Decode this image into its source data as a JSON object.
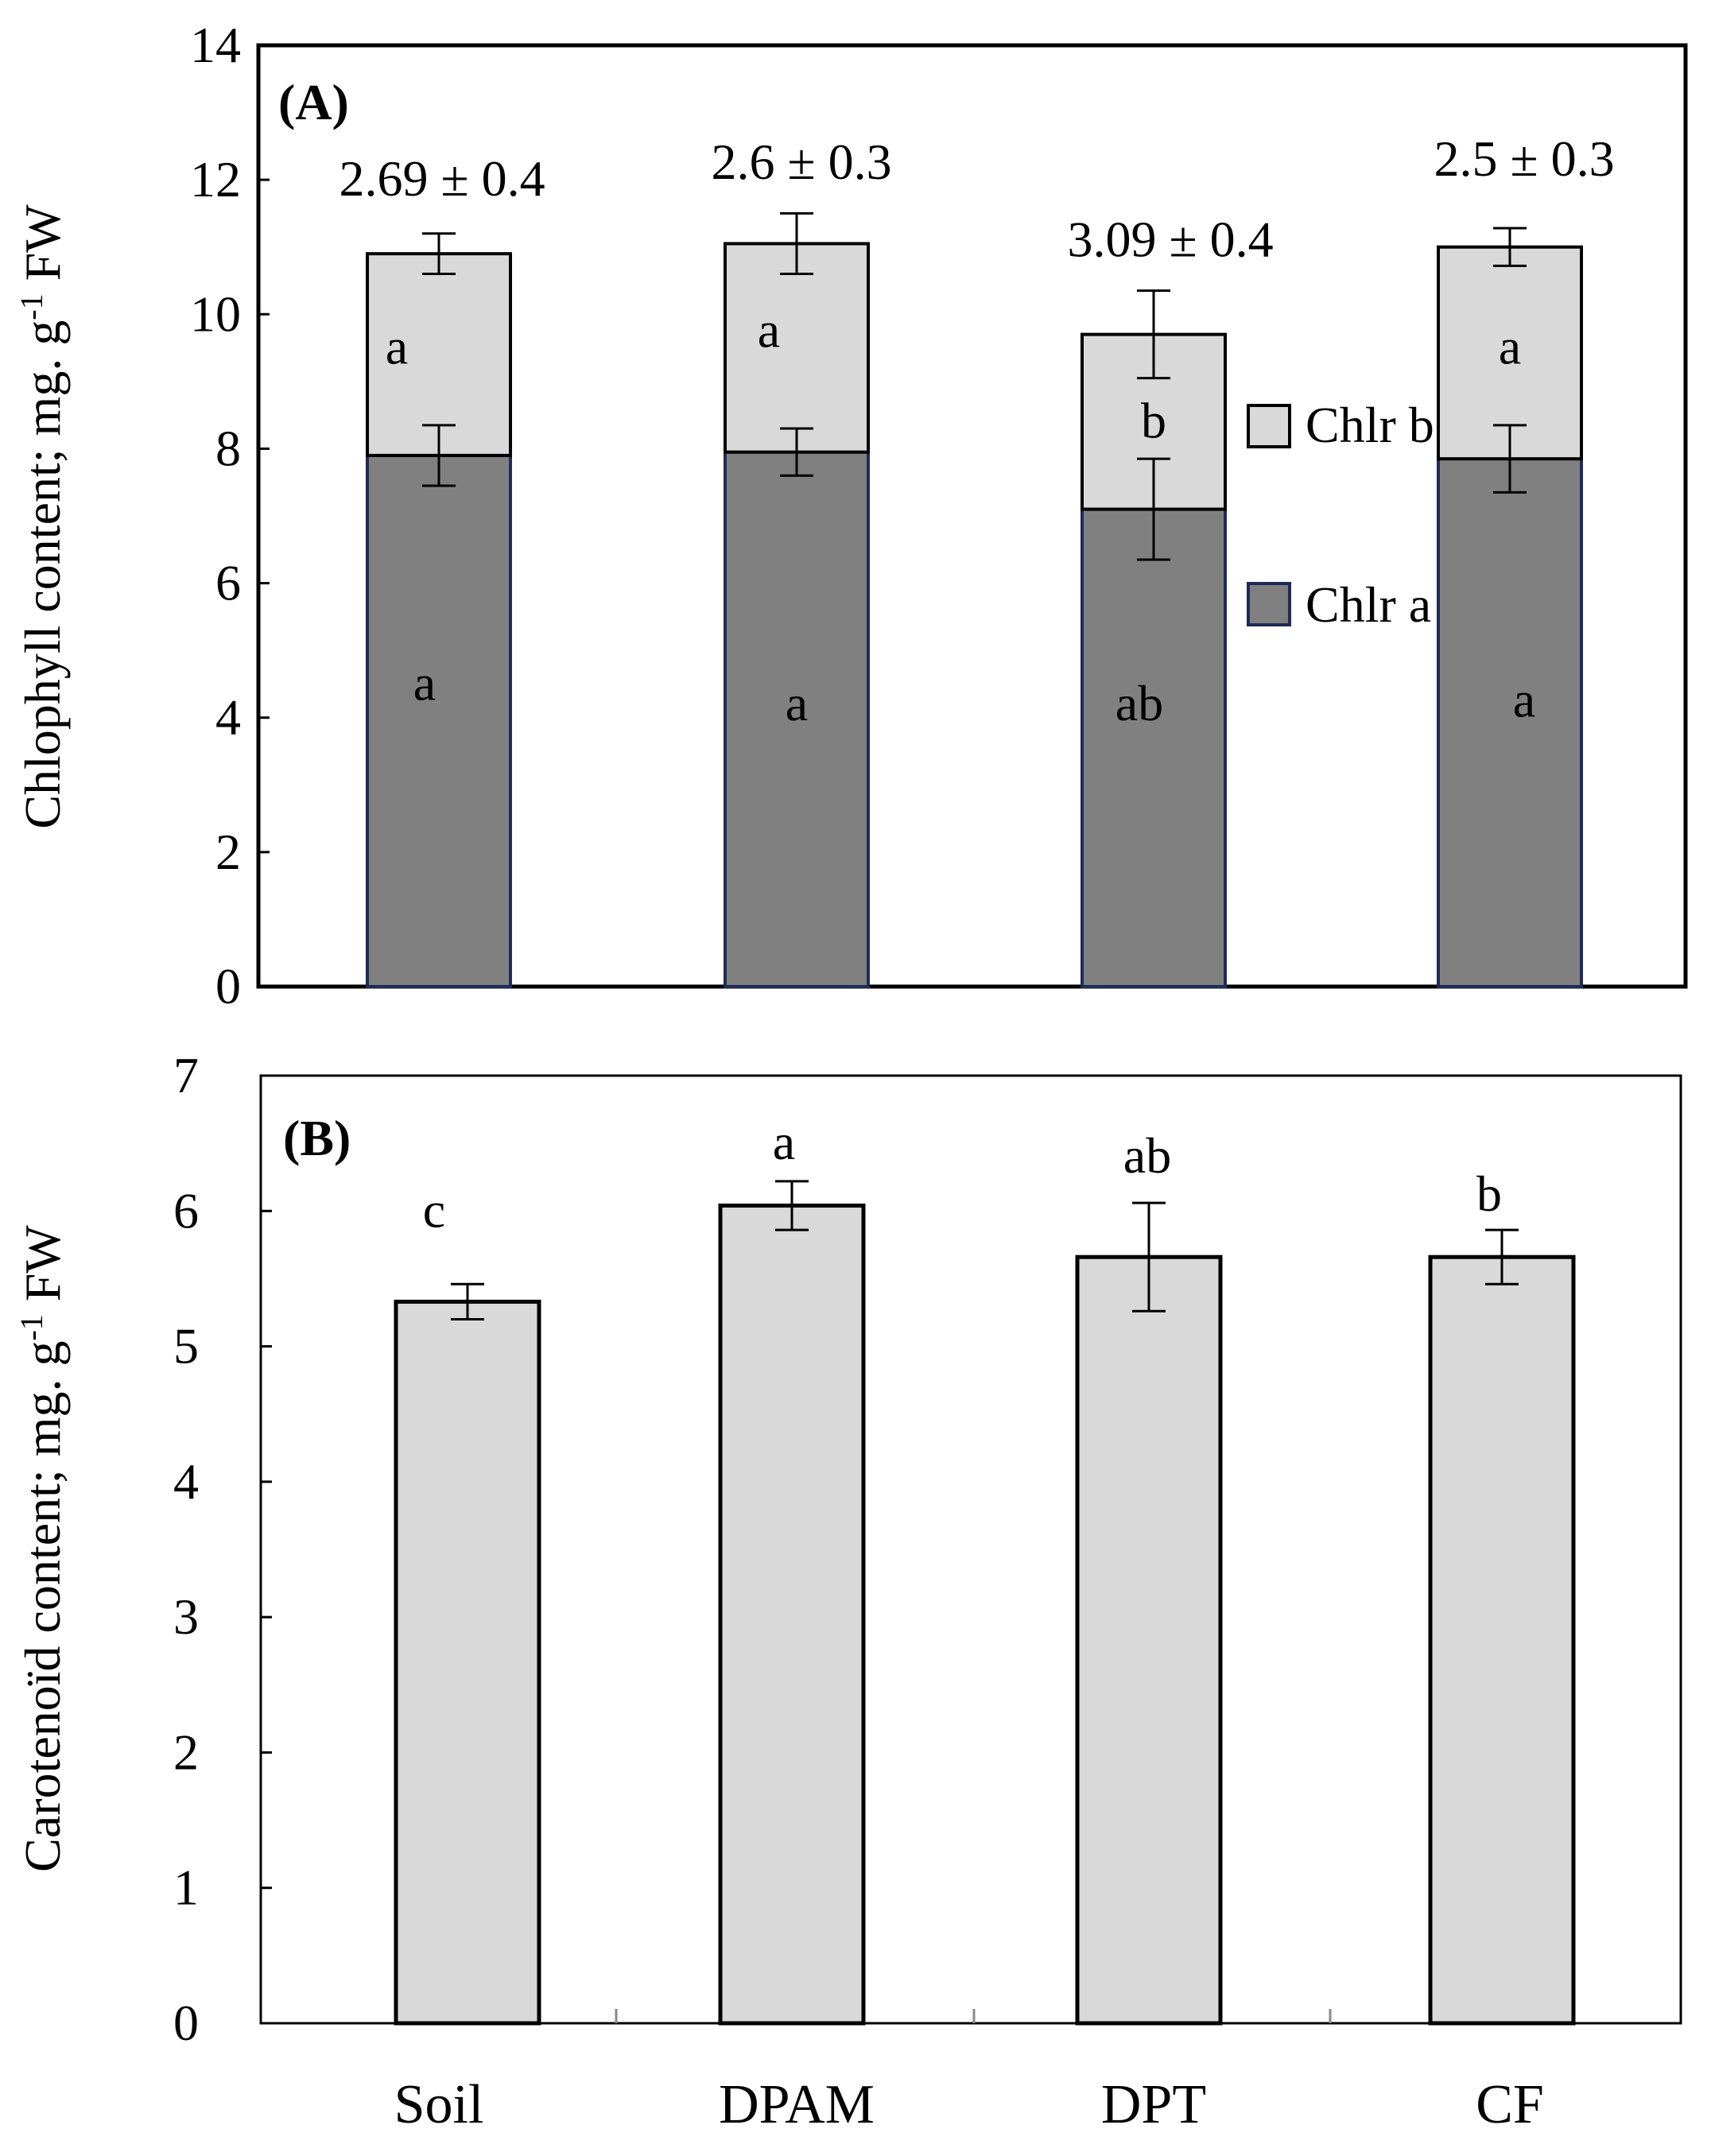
{
  "chart_data": [
    {
      "type": "bar",
      "stacked": true,
      "panel_label": "(A)",
      "ylabel": "Chlophyll content; mg. g",
      "ylabel_sup": "-1",
      "ylabel_suffix": " FW",
      "ylim": [
        0,
        14
      ],
      "yticks": [
        "0",
        "2",
        "4",
        "6",
        "8",
        "10",
        "12",
        "14"
      ],
      "categories": [
        "Soil",
        "DPAM",
        "DPT",
        "CF"
      ],
      "series": [
        {
          "name": "Chlr a",
          "values": [
            7.9,
            7.95,
            7.1,
            7.85
          ],
          "errors": [
            0.45,
            0.35,
            0.75,
            0.5
          ],
          "letters": [
            "a",
            "a",
            "ab",
            "a"
          ],
          "color": "#808080",
          "edge": "#1f2a56"
        },
        {
          "name": "Chlr b",
          "values": [
            3.0,
            3.1,
            2.6,
            3.15
          ],
          "errors": [
            0.3,
            0.45,
            0.65,
            0.28
          ],
          "letters": [
            "a",
            "a",
            "b",
            "a"
          ],
          "color": "#d9d9d9",
          "edge": "#000000"
        }
      ],
      "ratio_labels": [
        "2.69 ± 0.4",
        "2.6 ± 0.3",
        "3.09 ± 0.4",
        "2.5 ± 0.3"
      ],
      "legend": [
        "Chlr b",
        "Chlr a"
      ],
      "legend_position": "right-center"
    },
    {
      "type": "bar",
      "panel_label": "(B)",
      "ylabel": "Carotenoïd content; mg. g",
      "ylabel_sup": "-1",
      "ylabel_suffix": " FW",
      "ylim": [
        0,
        7
      ],
      "yticks": [
        "0",
        "1",
        "2",
        "3",
        "4",
        "5",
        "6",
        "7"
      ],
      "categories": [
        "Soil",
        "DPAM",
        "DPT",
        "CF"
      ],
      "values": [
        5.33,
        6.04,
        5.66,
        5.66
      ],
      "errors": [
        0.13,
        0.18,
        0.4,
        0.2
      ],
      "letters": [
        "c",
        "a",
        "ab",
        "b"
      ],
      "color": "#d9d9d9"
    }
  ]
}
